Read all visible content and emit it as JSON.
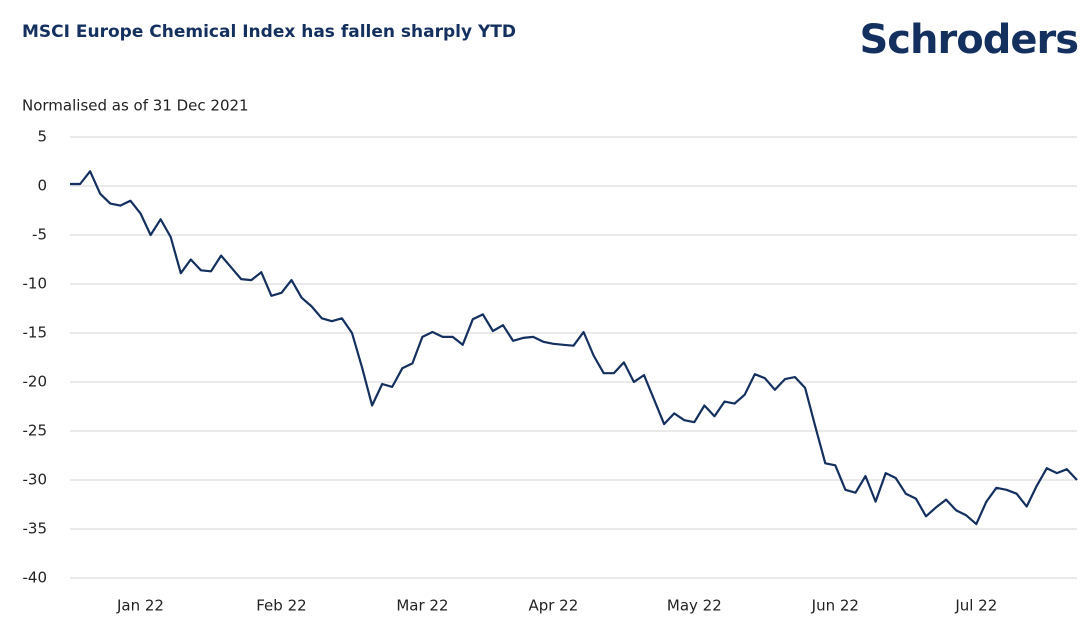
{
  "chart_data": {
    "type": "line",
    "title": "MSCI Europe Chemical Index has fallen sharply YTD",
    "brand": "Schroders",
    "ylabel": "Normalised as of 31 Dec 2021",
    "categories": [
      null,
      null,
      null,
      null,
      null,
      null,
      null,
      "Jan 22",
      null,
      null,
      null,
      null,
      null,
      null,
      null,
      null,
      null,
      null,
      null,
      null,
      null,
      "Feb 22",
      null,
      null,
      null,
      null,
      null,
      null,
      null,
      null,
      null,
      null,
      null,
      null,
      null,
      "Mar 22",
      null,
      null,
      null,
      null,
      null,
      null,
      null,
      null,
      null,
      null,
      null,
      null,
      "Apr 22",
      null,
      null,
      null,
      null,
      null,
      null,
      null,
      null,
      null,
      null,
      null,
      null,
      null,
      "May 22",
      null,
      null,
      null,
      null,
      null,
      null,
      null,
      null,
      null,
      null,
      null,
      null,
      null,
      "Jun 22",
      null,
      null,
      null,
      null,
      null,
      null,
      null,
      null,
      null,
      null,
      null,
      null,
      null,
      "Jul 22",
      null,
      null,
      null,
      null,
      null,
      null,
      null,
      null,
      null,
      null
    ],
    "series": [
      {
        "name": "MSCI Europe Chemical Index",
        "color": "#14305f",
        "values": [
          0.2,
          0.2,
          1.5,
          -0.8,
          -1.8,
          -2.0,
          -1.5,
          -2.8,
          -5.0,
          -3.4,
          -5.2,
          -8.9,
          -7.5,
          -8.6,
          -8.7,
          -7.1,
          -8.3,
          -9.5,
          -9.6,
          -8.8,
          -11.2,
          -10.9,
          -9.6,
          -11.4,
          -12.3,
          -13.5,
          -13.8,
          -13.5,
          -15.0,
          -18.5,
          -22.4,
          -20.2,
          -20.5,
          -18.6,
          -18.1,
          -15.4,
          -14.9,
          -15.4,
          -15.4,
          -16.2,
          -13.6,
          -13.1,
          -14.8,
          -14.2,
          -15.8,
          -15.5,
          -15.4,
          -15.9,
          -16.1,
          -16.2,
          -16.3,
          -14.9,
          -17.3,
          -19.1,
          -19.1,
          -18.0,
          -20.0,
          -19.3,
          -21.8,
          -24.3,
          -23.2,
          -23.9,
          -24.1,
          -22.4,
          -23.5,
          -22.0,
          -22.2,
          -21.3,
          -19.2,
          -19.6,
          -20.8,
          -19.7,
          -19.5,
          -20.6,
          -24.5,
          -28.3,
          -28.5,
          -31.0,
          -31.3,
          -29.6,
          -32.2,
          -29.3,
          -29.8,
          -31.4,
          -31.9,
          -33.7,
          -32.8,
          -32.0,
          -33.1,
          -33.6,
          -34.5,
          -32.2,
          -30.8,
          -31.0,
          -31.4,
          -32.7,
          -30.6,
          -28.8,
          -29.3,
          -28.9,
          -30.0
        ]
      }
    ],
    "ylim": [
      -40,
      5
    ],
    "yticks": [
      5,
      0,
      -5,
      -10,
      -15,
      -20,
      -25,
      -30,
      -35,
      -40
    ],
    "grid": true
  }
}
